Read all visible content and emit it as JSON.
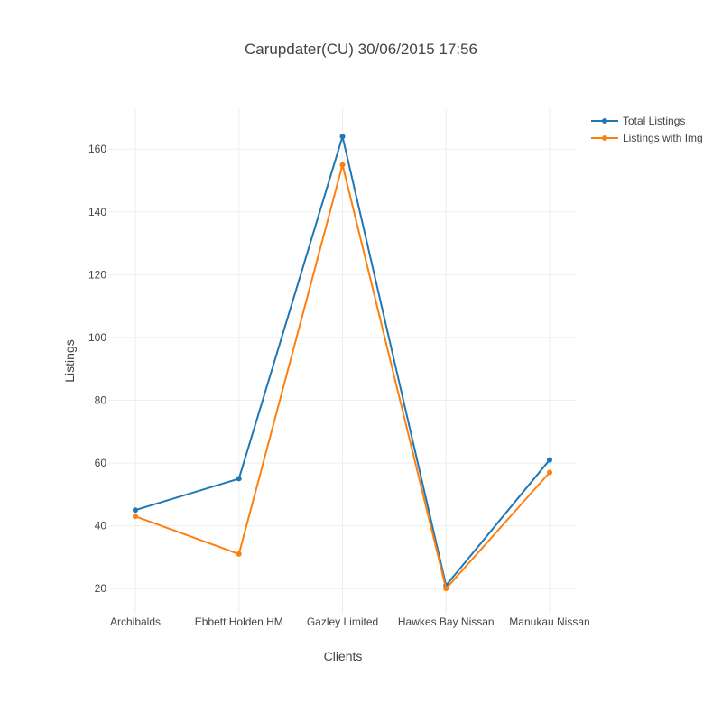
{
  "chart_data": {
    "type": "line",
    "title": "Carupdater(CU) 30/06/2015 17:56",
    "xlabel": "Clients",
    "ylabel": "Listings",
    "categories": [
      "Archibalds",
      "Ebbett Holden HM",
      "Gazley Limited",
      "Hawkes Bay Nissan",
      "Manukau Nissan"
    ],
    "ylim": [
      12,
      173
    ],
    "yticks": [
      20,
      40,
      60,
      80,
      100,
      120,
      140,
      160
    ],
    "grid": true,
    "legend_position": "top-right",
    "series": [
      {
        "name": "Total Listings",
        "values": [
          45,
          55,
          164,
          21,
          61
        ],
        "color": "#1f77b4"
      },
      {
        "name": "Listings with Img",
        "values": [
          43,
          31,
          155,
          20,
          57
        ],
        "color": "#ff7f0e"
      }
    ]
  }
}
